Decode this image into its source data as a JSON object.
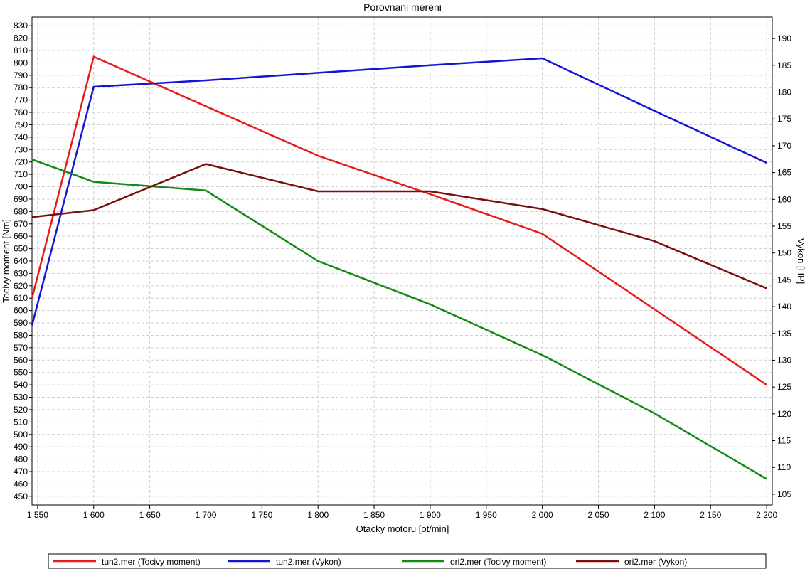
{
  "chart_data": {
    "type": "line",
    "title": "Porovnani mereni",
    "xlabel": "Otacky motoru [ot/min]",
    "ylabel_left": "Tocivy moment [Nm]",
    "ylabel_right": "Vykon [HP]",
    "xlim": [
      1545,
      2205
    ],
    "ylim_left": [
      443,
      837
    ],
    "ylim_right": [
      103,
      194
    ],
    "x_ticks": [
      1550,
      1600,
      1650,
      1700,
      1750,
      1800,
      1850,
      1900,
      1950,
      2000,
      2050,
      2100,
      2150,
      2200
    ],
    "x_tick_labels": [
      "1 550",
      "1 600",
      "1 650",
      "1 700",
      "1 750",
      "1 800",
      "1 850",
      "1 900",
      "1 950",
      "2 000",
      "2 050",
      "2 100",
      "2 150",
      "2 200"
    ],
    "y_left_ticks": [
      450,
      460,
      470,
      480,
      490,
      500,
      510,
      520,
      530,
      540,
      550,
      560,
      570,
      580,
      590,
      600,
      610,
      620,
      630,
      640,
      650,
      660,
      670,
      680,
      690,
      700,
      710,
      720,
      730,
      740,
      750,
      760,
      770,
      780,
      790,
      800,
      810,
      820,
      830
    ],
    "y_right_ticks": [
      105,
      110,
      115,
      120,
      125,
      130,
      135,
      140,
      145,
      150,
      155,
      160,
      165,
      170,
      175,
      180,
      185,
      190
    ],
    "grid": true,
    "legend_position": "bottom",
    "series": [
      {
        "name": "tun2.mer  (Tocivy moment)",
        "axis": "left",
        "color": "#e8191a",
        "x": [
          1545,
          1600,
          1700,
          1800,
          1900,
          2000,
          2100,
          2200
        ],
        "y": [
          610,
          805,
          765,
          725,
          694,
          662,
          601,
          540
        ]
      },
      {
        "name": "tun2.mer  (Vykon)",
        "axis": "right",
        "color": "#1414d2",
        "x": [
          1545,
          1600,
          1700,
          1800,
          1900,
          2000,
          2100,
          2200
        ],
        "y": [
          136.5,
          181,
          182.2,
          183.6,
          185,
          186.3,
          176.5,
          166.8
        ]
      },
      {
        "name": "ori2.mer  (Tocivy moment)",
        "axis": "left",
        "color": "#138a13",
        "x": [
          1545,
          1600,
          1700,
          1800,
          1900,
          2000,
          2100,
          2200
        ],
        "y": [
          722,
          704,
          697,
          640,
          605,
          564,
          517,
          464
        ]
      },
      {
        "name": "ori2.mer  (Vykon)",
        "axis": "right",
        "color": "#7b0f0f",
        "x": [
          1545,
          1600,
          1700,
          1800,
          1900,
          2000,
          2100,
          2200
        ],
        "y": [
          156.7,
          158,
          166.6,
          161.5,
          161.5,
          158.2,
          152.2,
          143.4
        ]
      }
    ]
  }
}
